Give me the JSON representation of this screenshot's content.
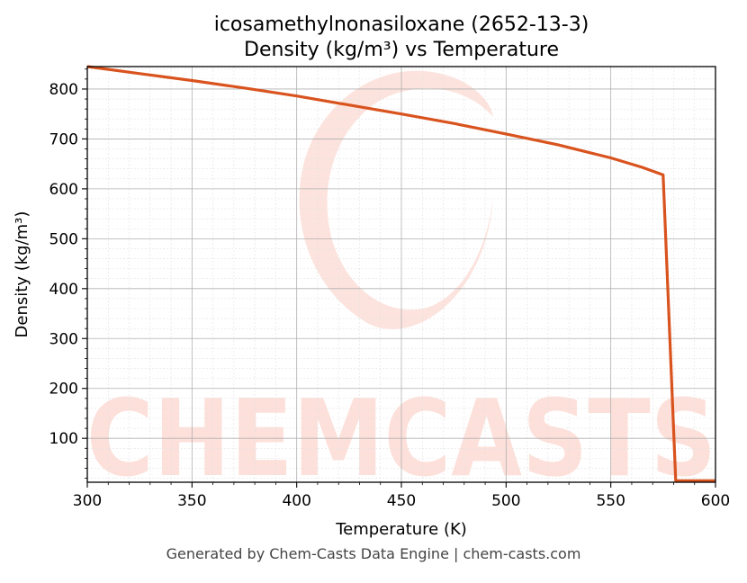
{
  "chart_data": {
    "type": "line",
    "title_line1": "icosamethylnonasiloxane (2652-13-3)",
    "title_line2": "Density (kg/m³) vs Temperature",
    "xlabel": "Temperature (K)",
    "ylabel": "Density (kg/m³)",
    "xlim": [
      300,
      600
    ],
    "ylim": [
      12,
      845
    ],
    "xticks": [
      300,
      350,
      400,
      450,
      500,
      550,
      600
    ],
    "yticks": [
      100,
      200,
      300,
      400,
      500,
      600,
      700,
      800
    ],
    "grid": true,
    "series": [
      {
        "color": "#d9531e",
        "x": [
          300,
          325,
          350,
          375,
          400,
          425,
          450,
          475,
          500,
          525,
          550,
          565,
          575,
          581,
          590,
          600
        ],
        "y": [
          845,
          831,
          817,
          802,
          786,
          768,
          750,
          731,
          710,
          688,
          662,
          643,
          628,
          15,
          15,
          15
        ]
      }
    ]
  },
  "watermark": {
    "text": "CHEMCASTS",
    "color": "#fde0da"
  },
  "footer": "Generated by Chem-Casts Data Engine | chem-casts.com"
}
